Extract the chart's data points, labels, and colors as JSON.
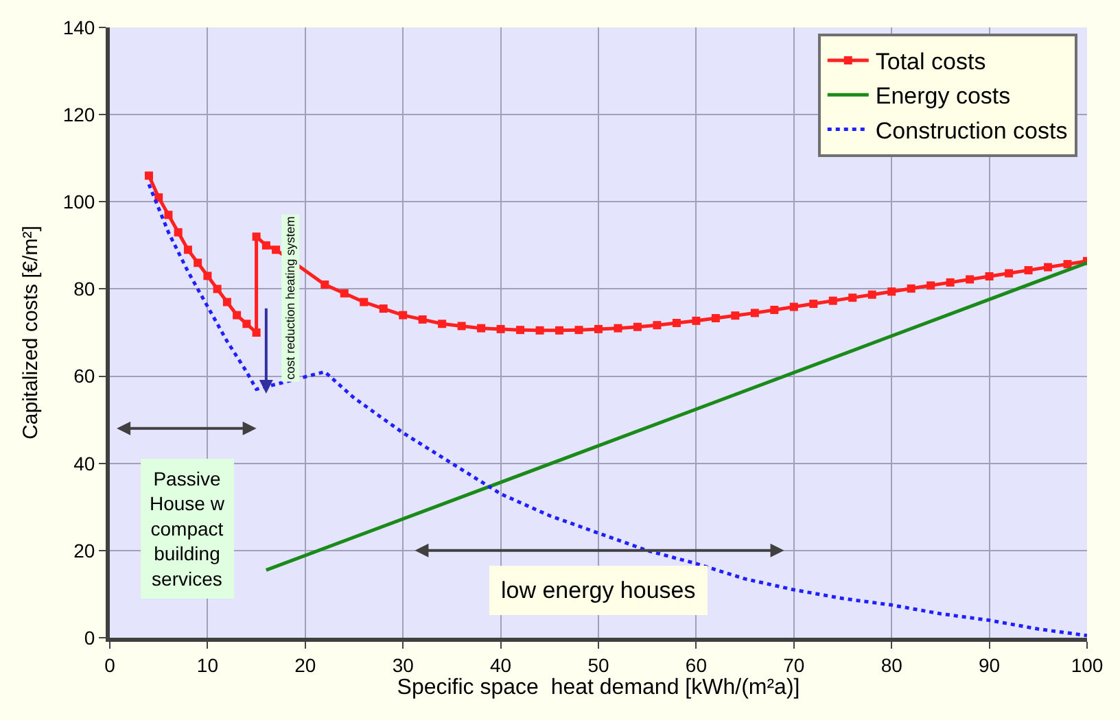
{
  "chart_data": {
    "type": "line",
    "xlabel": "Specific space  heat demand [kWh/(m²a)]",
    "ylabel": "Capitalized costs [€/m²]",
    "xlim": [
      0,
      100
    ],
    "xticks": [
      0,
      10,
      20,
      30,
      40,
      50,
      60,
      70,
      80,
      90,
      100
    ],
    "ylim": [
      0,
      140
    ],
    "yticks": [
      0,
      20,
      40,
      60,
      80,
      100,
      120,
      140
    ],
    "grid": true,
    "legend": "top right",
    "series": [
      {
        "name": "Total costs",
        "color": "#ff2020",
        "marker": "square",
        "line_style": "solid",
        "x": [
          4,
          5,
          6,
          7,
          8,
          9,
          10,
          11,
          12,
          13,
          14,
          15,
          15,
          16,
          17,
          22,
          24,
          26,
          28,
          30,
          32,
          34,
          36,
          38,
          40,
          42,
          44,
          46,
          48,
          50,
          52,
          54,
          56,
          58,
          60,
          62,
          64,
          66,
          68,
          70,
          72,
          74,
          76,
          78,
          80,
          82,
          84,
          86,
          88,
          90,
          92,
          94,
          96,
          98,
          100
        ],
        "values": [
          106,
          101,
          97,
          93,
          89,
          86,
          83,
          80,
          77,
          74,
          72,
          70,
          92,
          90,
          89,
          81,
          79,
          77,
          75.5,
          74,
          73,
          72,
          71.5,
          71,
          70.8,
          70.6,
          70.5,
          70.5,
          70.6,
          70.8,
          71,
          71.3,
          71.7,
          72.2,
          72.7,
          73.3,
          73.9,
          74.5,
          75.2,
          75.9,
          76.6,
          77.3,
          78,
          78.7,
          79.4,
          80.1,
          80.8,
          81.5,
          82.2,
          82.9,
          83.6,
          84.3,
          85,
          85.7,
          86.4
        ]
      },
      {
        "name": "Energy costs",
        "color": "#1a8a1a",
        "marker": "none",
        "line_style": "solid",
        "x": [
          16,
          100
        ],
        "values": [
          15.5,
          86
        ]
      },
      {
        "name": "Construction costs",
        "color": "#2020ff",
        "marker": "none",
        "line_style": "dotted",
        "x": [
          4,
          6,
          8,
          10,
          12,
          14,
          15,
          22,
          25,
          30,
          35,
          40,
          45,
          50,
          55,
          60,
          65,
          70,
          75,
          80,
          85,
          90,
          95,
          100
        ],
        "values": [
          104,
          93,
          84,
          76,
          68,
          61,
          57,
          61,
          55,
          47,
          40,
          33,
          28,
          24,
          20,
          17,
          13.5,
          11,
          9,
          7.5,
          5.5,
          4,
          2,
          0.5
        ]
      }
    ],
    "annotations": [
      "cost reduction heating system",
      "Passive House w compact building services",
      "low energy houses"
    ]
  }
}
